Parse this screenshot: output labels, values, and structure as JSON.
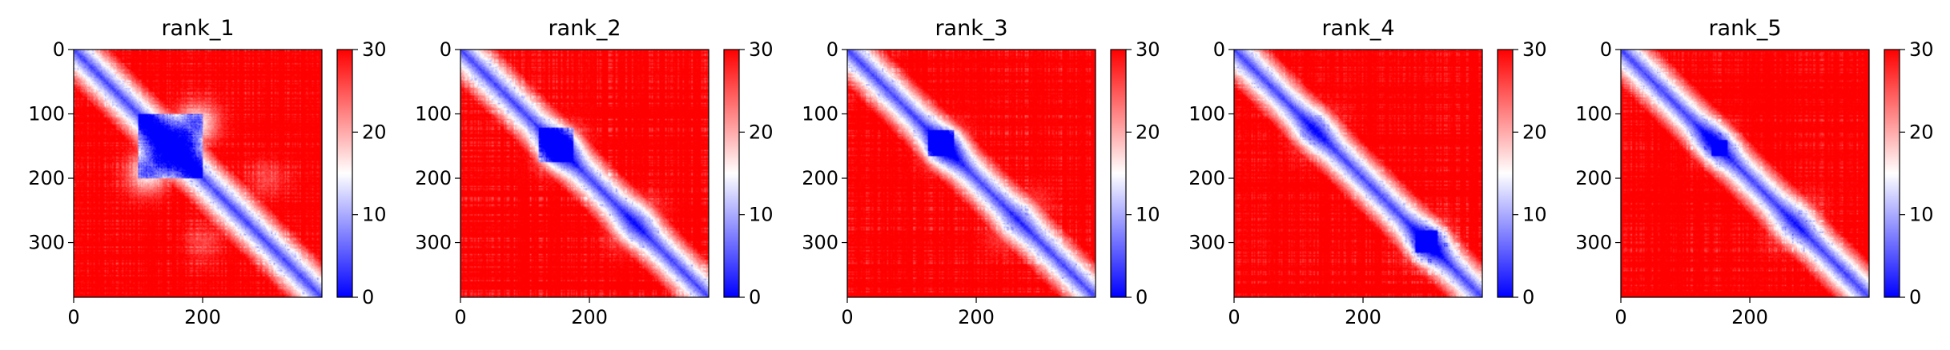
{
  "chart_data": [
    {
      "type": "heatmap",
      "title": "rank_1",
      "xlabel": "",
      "ylabel": "",
      "x_ticks": [
        0,
        200
      ],
      "y_ticks": [
        0,
        100,
        200,
        300
      ],
      "x_range": [
        0,
        385
      ],
      "y_range": [
        0,
        385
      ],
      "colorbar": {
        "min": 0,
        "max": 30,
        "ticks": [
          0,
          10,
          20,
          30
        ],
        "colormap": "bwr"
      },
      "features": {
        "domain_blocks": [
          [
            100,
            200,
            0.9
          ]
        ],
        "off_diagonal": [
          [
            120,
            180,
            0.8
          ],
          [
            180,
            120,
            0.8
          ],
          [
            110,
            200,
            0.55
          ],
          [
            200,
            110,
            0.55
          ],
          [
            300,
            200,
            0.35
          ],
          [
            200,
            300,
            0.35
          ]
        ],
        "spots": []
      }
    },
    {
      "type": "heatmap",
      "title": "rank_2",
      "xlabel": "",
      "ylabel": "",
      "x_ticks": [
        0,
        200
      ],
      "y_ticks": [
        0,
        100,
        200,
        300
      ],
      "x_range": [
        0,
        385
      ],
      "y_range": [
        0,
        385
      ],
      "colorbar": {
        "min": 0,
        "max": 30,
        "ticks": [
          0,
          10,
          20,
          30
        ],
        "colormap": "bwr"
      },
      "features": {
        "domain_blocks": [
          [
            120,
            175,
            0.7
          ]
        ],
        "off_diagonal": [
          [
            140,
            165,
            0.55
          ],
          [
            165,
            140,
            0.55
          ],
          [
            290,
            250,
            0.35
          ],
          [
            250,
            290,
            0.35
          ]
        ],
        "spots": [
          [
            65,
            65
          ],
          [
            110,
            110
          ],
          [
            150,
            150
          ]
        ]
      }
    },
    {
      "type": "heatmap",
      "title": "rank_3",
      "xlabel": "",
      "ylabel": "",
      "x_ticks": [
        0,
        200
      ],
      "y_ticks": [
        0,
        100,
        200,
        300
      ],
      "x_range": [
        0,
        385
      ],
      "y_range": [
        0,
        385
      ],
      "colorbar": {
        "min": 0,
        "max": 30,
        "ticks": [
          0,
          10,
          20,
          30
        ],
        "colormap": "bwr"
      },
      "features": {
        "domain_blocks": [
          [
            125,
            165,
            0.75
          ]
        ],
        "off_diagonal": [
          [
            140,
            160,
            0.5
          ],
          [
            160,
            140,
            0.5
          ],
          [
            290,
            240,
            0.3
          ],
          [
            240,
            290,
            0.3
          ]
        ],
        "spots": [
          [
            65,
            65
          ],
          [
            110,
            110
          ],
          [
            150,
            150
          ],
          [
            230,
            230
          ]
        ]
      }
    },
    {
      "type": "heatmap",
      "title": "rank_4",
      "xlabel": "",
      "ylabel": "",
      "x_ticks": [
        0,
        200
      ],
      "y_ticks": [
        0,
        100,
        200,
        300
      ],
      "x_range": [
        0,
        385
      ],
      "y_range": [
        0,
        385
      ],
      "colorbar": {
        "min": 0,
        "max": 30,
        "ticks": [
          0,
          10,
          20,
          30
        ],
        "colormap": "bwr"
      },
      "features": {
        "domain_blocks": [
          [
            280,
            315,
            0.75
          ]
        ],
        "off_diagonal": [
          [
            290,
            310,
            0.5
          ],
          [
            310,
            290,
            0.5
          ],
          [
            140,
            110,
            0.3
          ],
          [
            110,
            140,
            0.3
          ]
        ],
        "spots": [
          [
            65,
            65
          ],
          [
            105,
            105
          ],
          [
            150,
            150
          ],
          [
            230,
            230
          ]
        ]
      }
    },
    {
      "type": "heatmap",
      "title": "rank_5",
      "xlabel": "",
      "ylabel": "",
      "x_ticks": [
        0,
        200
      ],
      "y_ticks": [
        0,
        100,
        200,
        300
      ],
      "x_range": [
        0,
        385
      ],
      "y_range": [
        0,
        385
      ],
      "colorbar": {
        "min": 0,
        "max": 30,
        "ticks": [
          0,
          10,
          20,
          30
        ],
        "colormap": "bwr"
      },
      "features": {
        "domain_blocks": [
          [
            140,
            165,
            0.55
          ]
        ],
        "off_diagonal": [
          [
            150,
            140,
            0.35
          ],
          [
            140,
            150,
            0.35
          ],
          [
            290,
            250,
            0.3
          ],
          [
            250,
            290,
            0.3
          ]
        ],
        "spots": [
          [
            65,
            65
          ],
          [
            105,
            105
          ],
          [
            150,
            150
          ]
        ]
      }
    }
  ]
}
